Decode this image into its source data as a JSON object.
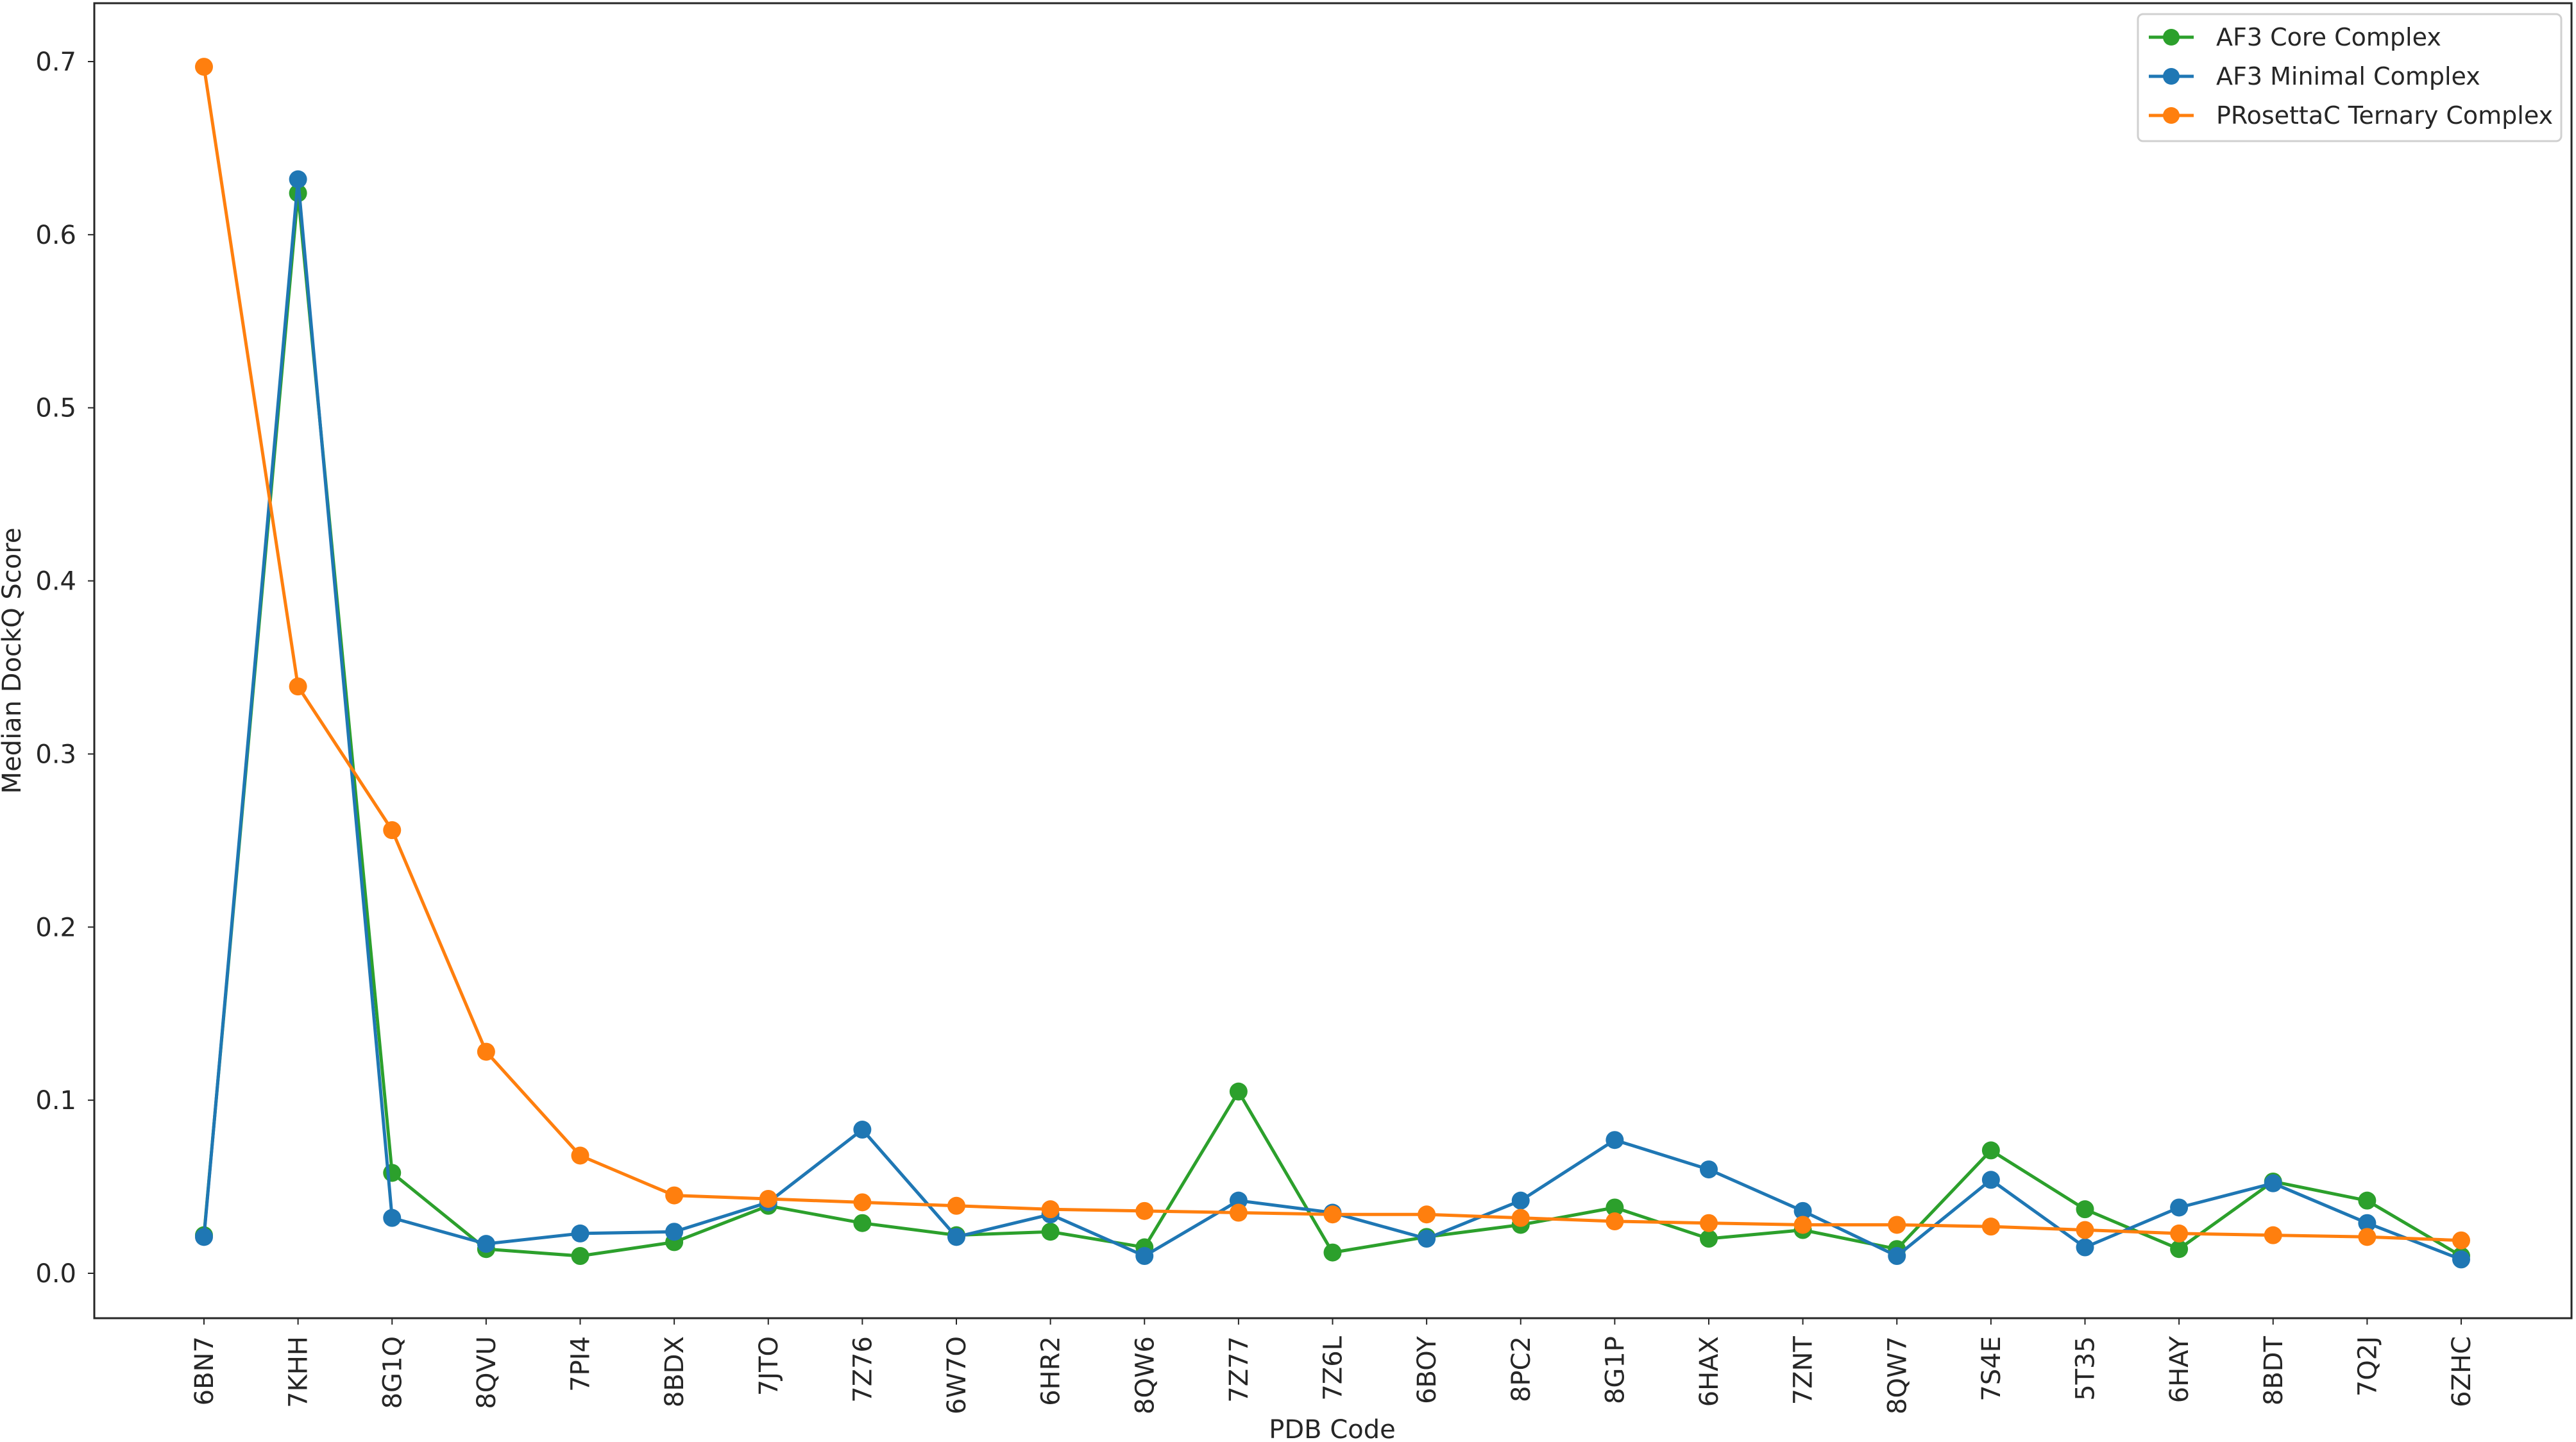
{
  "chart_data": {
    "type": "line",
    "xlabel": "PDB Code",
    "ylabel": "Median DockQ Score",
    "ylim": [
      -0.027,
      0.73
    ],
    "yticks": [
      0.0,
      0.1,
      0.2,
      0.3,
      0.4,
      0.5,
      0.6,
      0.7
    ],
    "ytick_labels": [
      "0.0",
      "0.1",
      "0.2",
      "0.3",
      "0.4",
      "0.5",
      "0.6",
      "0.7"
    ],
    "grid": false,
    "legend_position": "top-right",
    "categories": [
      "6BN7",
      "7KHH",
      "8G1Q",
      "8QVU",
      "7PI4",
      "8BDX",
      "7JTO",
      "7Z76",
      "6W7O",
      "6HR2",
      "8QW6",
      "7Z77",
      "7Z6L",
      "6BOY",
      "8PC2",
      "8G1P",
      "6HAX",
      "7ZNT",
      "8QW7",
      "7S4E",
      "5T35",
      "6HAY",
      "8BDT",
      "7Q2J",
      "6ZHC"
    ],
    "series": [
      {
        "name": "AF3 Core Complex",
        "color": "#2ca02c",
        "values": [
          0.022,
          0.624,
          0.058,
          0.014,
          0.01,
          0.018,
          0.039,
          0.029,
          0.022,
          0.024,
          0.015,
          0.105,
          0.012,
          0.021,
          0.028,
          0.038,
          0.02,
          0.025,
          0.014,
          0.071,
          0.037,
          0.014,
          0.053,
          0.042,
          0.01
        ]
      },
      {
        "name": "AF3 Minimal Complex",
        "color": "#1f77b4",
        "values": [
          0.021,
          0.632,
          0.032,
          0.017,
          0.023,
          0.024,
          0.041,
          0.083,
          0.021,
          0.034,
          0.01,
          0.042,
          0.035,
          0.02,
          0.042,
          0.077,
          0.06,
          0.036,
          0.01,
          0.054,
          0.015,
          0.038,
          0.052,
          0.029,
          0.008
        ]
      },
      {
        "name": "PRosettaC Ternary Complex",
        "color": "#ff7f0e",
        "values": [
          0.697,
          0.339,
          0.256,
          0.128,
          0.068,
          0.045,
          0.043,
          0.041,
          0.039,
          0.037,
          0.036,
          0.035,
          0.034,
          0.034,
          0.032,
          0.03,
          0.029,
          0.028,
          0.028,
          0.027,
          0.025,
          0.023,
          0.022,
          0.021,
          0.019
        ]
      }
    ]
  }
}
